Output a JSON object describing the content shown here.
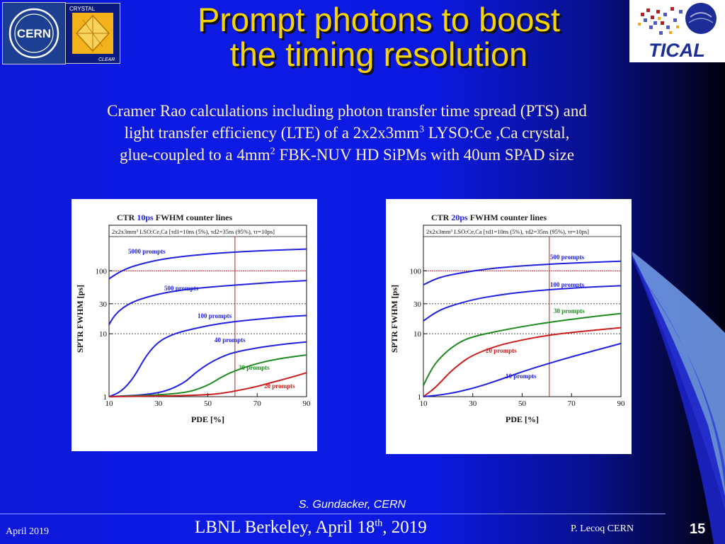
{
  "slide": {
    "title_line1": "Prompt photons to boost",
    "title_line2": "the timing resolution",
    "desc": {
      "l1": "Cramer Rao calculations including photon transfer time spread (PTS) and",
      "l2a": "light transfer efficiency (LTE) of a 2x2x3mm",
      "l2sup": "3",
      "l2b": " LYSO:Ce ,Ca crystal,",
      "l3a": "glue-coupled to a 4mm",
      "l3sup": "2",
      "l3b": " FBK-NUV HD SiPMs with 40um SPAD size"
    },
    "credit": "S. Gundacker, CERN",
    "footer": {
      "date": "April 2019",
      "center_a": "LBNL Berkeley, April 18",
      "center_sup": "th",
      "center_b": ", 2019",
      "author": "P. Lecoq  CERN",
      "page": "15"
    },
    "colors": {
      "title": "#f5d300",
      "accent_red": "#cc1c1c",
      "blue": "#2020e0",
      "green": "#1d8a1d"
    }
  },
  "logos": {
    "cern": "CERN",
    "crystal_top": "CRYSTAL",
    "crystal_bottom": "CLEAR",
    "tical": "TICAL"
  },
  "chart_data": [
    {
      "type": "line",
      "title_prefix": "CTR ",
      "title_highlight": "10ps",
      "title_suffix": " FWHM counter lines",
      "legend_text": "2x2x3mm³ LSO:Ce,Ca [τd1=10ns (5%), τd2=35ns (95%), τr=10ps]",
      "xlabel": "PDE [%]",
      "ylabel": "SPTR FWHM [ps]",
      "xlim": [
        10,
        90
      ],
      "ylim": [
        1,
        300
      ],
      "yscale": "log",
      "xticks": [
        10,
        30,
        50,
        70,
        90
      ],
      "yticks": [
        1,
        10,
        30,
        100
      ],
      "grid": "dotted horizontal at 10, 30, 100",
      "marker_x": 61,
      "marker_y": 100,
      "series": [
        {
          "name": "5000 prompts",
          "color": "blue",
          "x": [
            10,
            15,
            20,
            30,
            40,
            50,
            60,
            70,
            80,
            90
          ],
          "y": [
            75,
            100,
            120,
            150,
            170,
            185,
            198,
            208,
            215,
            222
          ]
        },
        {
          "name": "500 prompts",
          "color": "blue",
          "x": [
            10,
            12,
            15,
            20,
            30,
            40,
            50,
            60,
            70,
            80,
            90
          ],
          "y": [
            14,
            19,
            25,
            33,
            43,
            50,
            55,
            59,
            63,
            67,
            70
          ]
        },
        {
          "name": "100 prompts",
          "color": "blue",
          "x": [
            10,
            15,
            20,
            25,
            30,
            35,
            40,
            50,
            60,
            70,
            80,
            90
          ],
          "y": [
            1.0,
            1.2,
            2.0,
            4.5,
            7.5,
            9.5,
            11,
            13.5,
            15.5,
            17,
            18.5,
            19.5
          ]
        },
        {
          "name": "40 prompts",
          "color": "blue",
          "x": [
            10,
            30,
            40,
            45,
            50,
            55,
            60,
            70,
            80,
            90
          ],
          "y": [
            1.0,
            1.1,
            1.6,
            2.4,
            3.3,
            4.2,
            5.0,
            6.0,
            6.8,
            7.4
          ]
        },
        {
          "name": "30 prompts",
          "color": "green",
          "x": [
            10,
            40,
            50,
            55,
            60,
            70,
            80,
            90
          ],
          "y": [
            1.0,
            1.1,
            1.5,
            2.0,
            2.5,
            3.4,
            4.1,
            4.6
          ]
        },
        {
          "name": "20 prompts",
          "color": "red",
          "x": [
            10,
            50,
            60,
            70,
            75,
            80,
            85,
            90
          ],
          "y": [
            1.0,
            1.05,
            1.2,
            1.45,
            1.65,
            1.85,
            2.1,
            2.4
          ]
        }
      ]
    },
    {
      "type": "line",
      "title_prefix": "CTR ",
      "title_highlight": "20ps",
      "title_suffix": " FWHM counter lines",
      "legend_text": "2x2x3mm³ LSO:Ce,Ca [τd1=10ns (5%), τd2=35ns (95%), τr=10ps]",
      "xlabel": "PDE [%]",
      "ylabel": "SPTR FWHM [ps]",
      "xlim": [
        10,
        90
      ],
      "ylim": [
        1,
        300
      ],
      "yscale": "log",
      "xticks": [
        10,
        30,
        50,
        70,
        90
      ],
      "yticks": [
        1,
        10,
        30,
        100
      ],
      "grid": "dotted horizontal at 10, 30, 100",
      "marker_x": 61,
      "marker_y": 100,
      "series": [
        {
          "name": "500 prompts",
          "color": "blue",
          "x": [
            10,
            15,
            20,
            30,
            40,
            50,
            60,
            70,
            80,
            90
          ],
          "y": [
            60,
            75,
            85,
            100,
            112,
            120,
            127,
            133,
            138,
            142
          ]
        },
        {
          "name": "100 prompts",
          "color": "blue",
          "x": [
            10,
            15,
            20,
            30,
            40,
            50,
            60,
            70,
            80,
            90
          ],
          "y": [
            16,
            22,
            27,
            35,
            41,
            46,
            50,
            53,
            56,
            58
          ]
        },
        {
          "name": "30 prompts",
          "color": "green",
          "x": [
            10,
            12,
            15,
            20,
            25,
            30,
            40,
            50,
            60,
            70,
            80,
            90
          ],
          "y": [
            1.5,
            2.2,
            3.5,
            5.5,
            7.5,
            9.0,
            11,
            13,
            15,
            17,
            19,
            21
          ]
        },
        {
          "name": "20 prompts",
          "color": "red",
          "x": [
            10,
            15,
            20,
            25,
            30,
            40,
            50,
            60,
            70,
            80,
            90
          ],
          "y": [
            1.0,
            1.4,
            2.3,
            3.4,
            4.6,
            6.5,
            8.0,
            9.4,
            10.5,
            11.5,
            12.5
          ]
        },
        {
          "name": "10 prompts",
          "color": "blue",
          "x": [
            10,
            20,
            30,
            40,
            50,
            60,
            70,
            80,
            90
          ],
          "y": [
            1.0,
            1.1,
            1.35,
            1.8,
            2.5,
            3.3,
            4.3,
            5.5,
            7.0
          ]
        }
      ]
    }
  ]
}
